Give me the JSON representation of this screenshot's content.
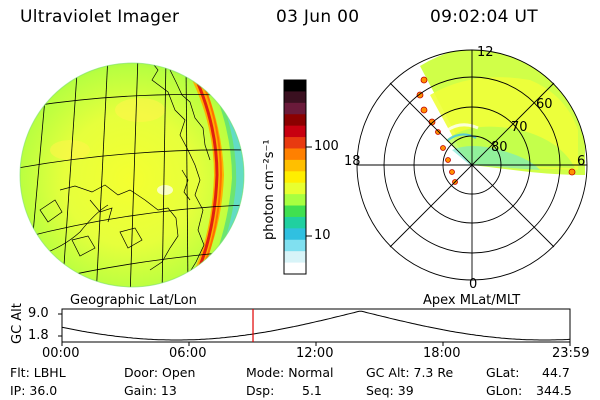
{
  "header": {
    "instrument": "Ultraviolet Imager",
    "date": "03 Jun 00",
    "time": "09:02:04 UT"
  },
  "colorbar": {
    "unit_label": "photon cm⁻²s⁻¹",
    "tick_labels": [
      "100",
      "10"
    ],
    "colors": [
      "#000000",
      "#3a1020",
      "#6a1a3a",
      "#8b0000",
      "#c80010",
      "#e83a10",
      "#ff8000",
      "#ffbf00",
      "#ffee00",
      "#e8ff30",
      "#a8ff40",
      "#40e050",
      "#20d0a0",
      "#30c0e0",
      "#80e0f0",
      "#d8f4f8",
      "#ffffff"
    ]
  },
  "left_panel": {
    "caption": "Geographic Lat/Lon"
  },
  "right_panel": {
    "caption": "Apex MLat/MLT",
    "mlt_labels": {
      "top": "12",
      "left": "18",
      "right": "6",
      "bottom": "0"
    },
    "lat_labels": [
      "60",
      "70",
      "80"
    ]
  },
  "timeline": {
    "ylabel": "GC Alt",
    "yticks": [
      "9.0",
      "1.8"
    ],
    "xticks": [
      "00:00",
      "06:00",
      "12:00",
      "18:00",
      "23:59"
    ],
    "current_time_fraction": 0.376
  },
  "info": {
    "filter": "Flt: LBHL",
    "ip": "IP: 36.0",
    "door": "Door: Open",
    "gain": "Gain: 13",
    "mode": "Mode: Normal",
    "dsp_label": "Dsp:",
    "dsp_value": "5.1",
    "gc_alt": "GC Alt: 7.3 Re",
    "seq": "Seq: 39",
    "glat_label": "GLat:",
    "glat_value": "44.7",
    "glon_label": "GLon:",
    "glon_value": "344.5"
  }
}
